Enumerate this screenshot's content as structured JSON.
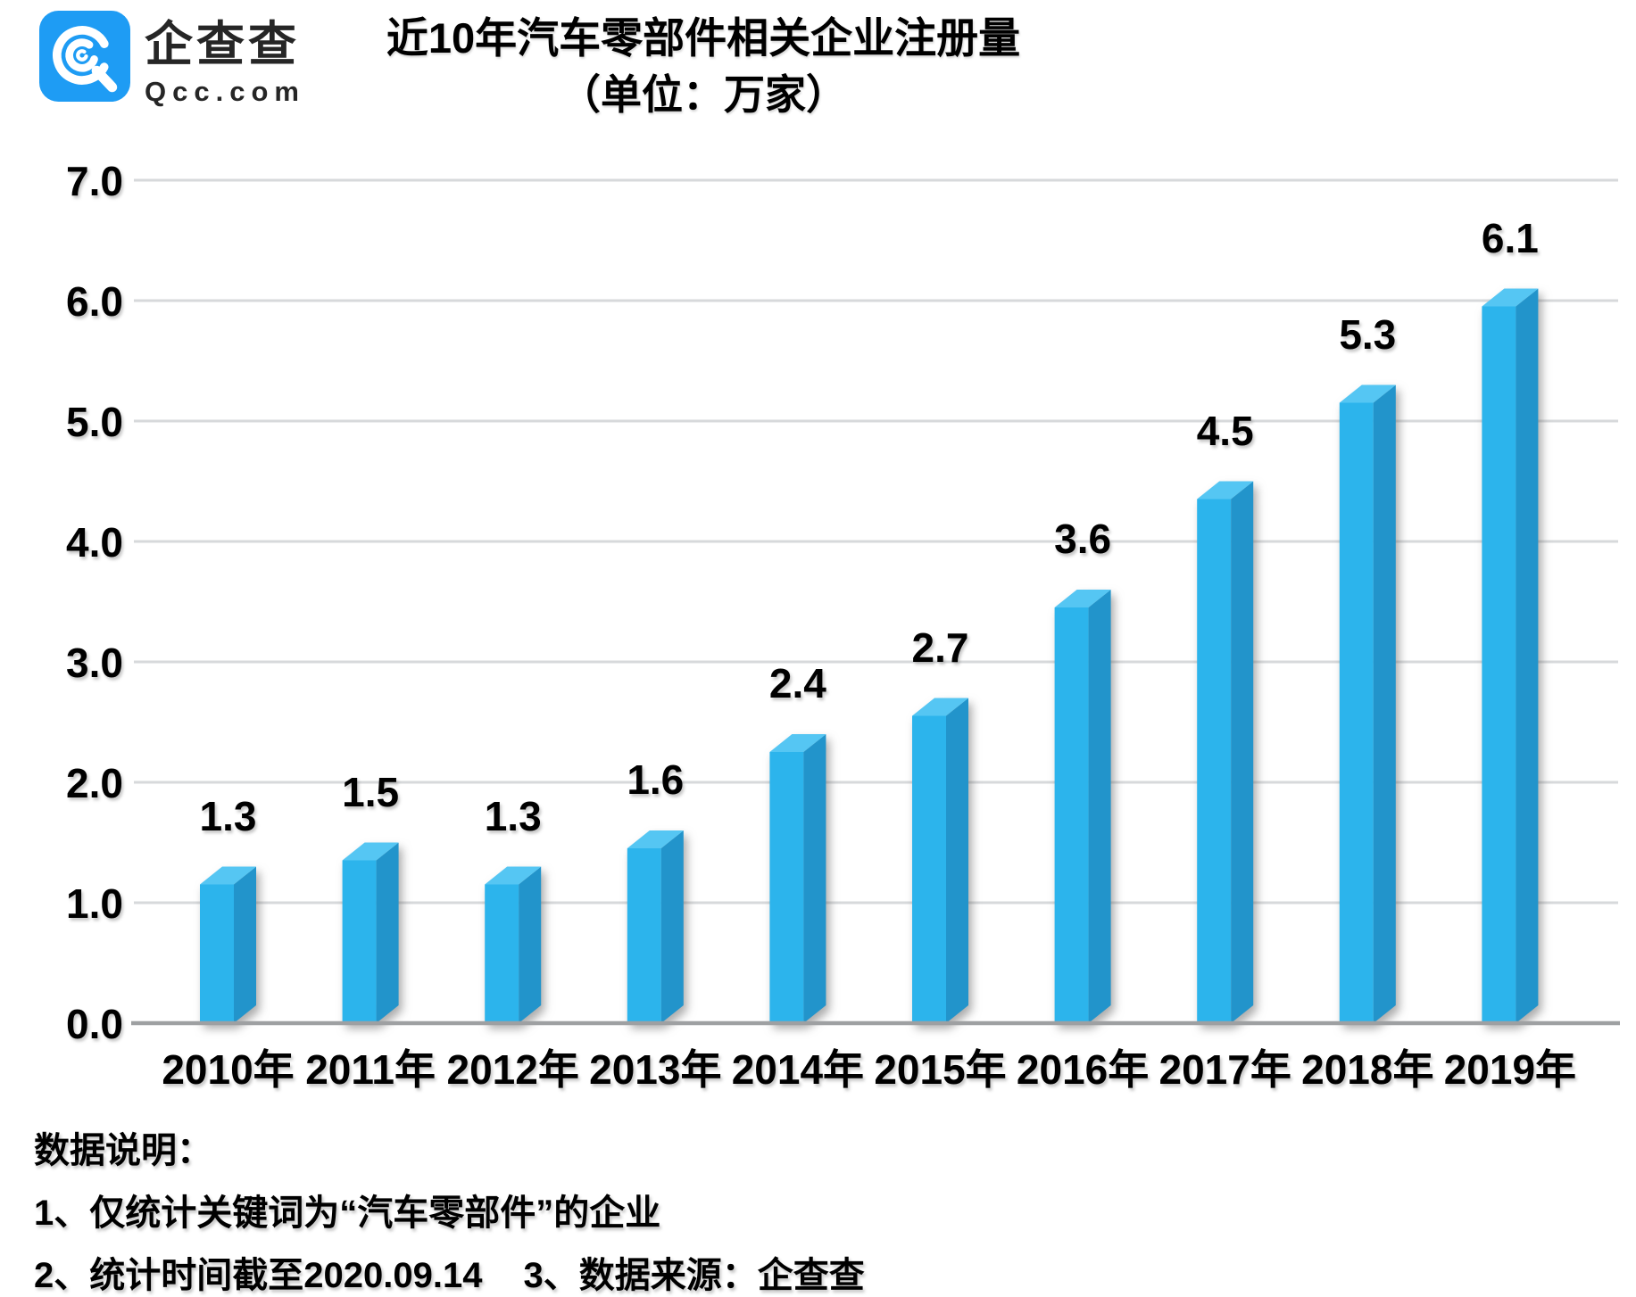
{
  "brand": {
    "name": "企查查",
    "domain": "Qcc.com",
    "icon": "qcc-spiral-logo-icon",
    "logo_color": "#1E9CF4"
  },
  "title": {
    "line1": "近10年汽车零部件相关企业注册量",
    "line2": "（单位：万家）"
  },
  "chart_data": {
    "type": "bar",
    "bar_style": "3d",
    "title": "近10年汽车零部件相关企业注册量",
    "subtitle_unit": "（单位：万家）",
    "categories": [
      "2010年",
      "2011年",
      "2012年",
      "2013年",
      "2014年",
      "2015年",
      "2016年",
      "2017年",
      "2018年",
      "2019年"
    ],
    "values": [
      1.3,
      1.5,
      1.3,
      1.6,
      2.4,
      2.7,
      3.6,
      4.5,
      5.3,
      6.1
    ],
    "value_labels": [
      "1.3",
      "1.5",
      "1.3",
      "1.6",
      "2.4",
      "2.7",
      "3.6",
      "4.5",
      "5.3",
      "6.1"
    ],
    "xlabel": "",
    "ylabel": "",
    "ylim": [
      0.0,
      7.0
    ],
    "ytick_step": 1.0,
    "ytick_labels": [
      "0.0",
      "1.0",
      "2.0",
      "3.0",
      "4.0",
      "5.0",
      "6.0",
      "7.0"
    ],
    "grid": true,
    "legend": false,
    "colors": {
      "bar_front": "#2CB4EC",
      "bar_side": "#2294CB",
      "bar_top": "#55C6F3",
      "gridline": "#D7D9DB",
      "baseline": "#9EA0A2",
      "label": "#000000"
    }
  },
  "footnotes": {
    "heading": "数据说明：",
    "note1": "1、仅统计关键词为“汽车零部件”的企业",
    "note2": "2、统计时间截至2020.09.14",
    "note3": "3、数据来源：企查查"
  }
}
